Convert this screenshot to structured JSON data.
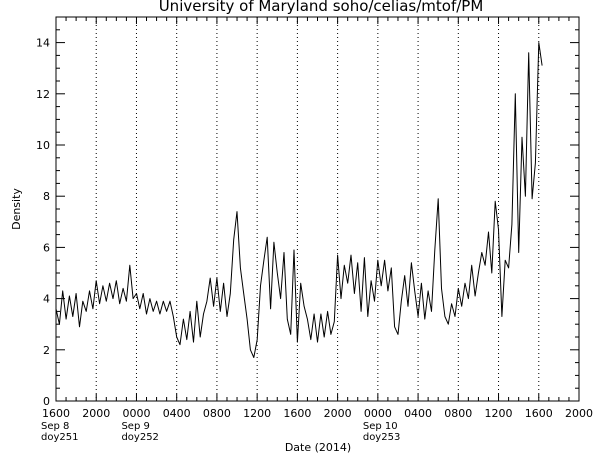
{
  "chart_data": {
    "type": "line",
    "title": "University  of  Maryland   soho/celias/mtof/PM",
    "xlabel": "Date (2014)",
    "ylabel": "Density",
    "ylim": [
      0,
      15
    ],
    "yticks": [
      0,
      2,
      4,
      6,
      8,
      10,
      12,
      14
    ],
    "x_start": "2014-09-08 16:00",
    "x_end": "2014-09-10 20:00",
    "xticks": [
      "1600",
      "2000",
      "0000",
      "0400",
      "0800",
      "1200",
      "1600",
      "2000",
      "0000",
      "0400",
      "0800",
      "1200",
      "1600",
      "2000"
    ],
    "date_markers": [
      {
        "tick": "1600",
        "lines": [
          "Sep 8",
          "doy251"
        ]
      },
      {
        "tick": "0000",
        "lines": [
          "Sep 9",
          "doy252"
        ]
      },
      {
        "tick": "0000",
        "lines": [
          "Sep 10",
          "doy253"
        ]
      }
    ],
    "grid": "dotted vertical lines every 4 hours",
    "series": [
      {
        "color": "#000000",
        "points": [
          [
            "2014-09-08 16:00",
            3.6
          ],
          [
            "2014-09-08 16:20",
            3.0
          ],
          [
            "2014-09-08 16:40",
            4.3
          ],
          [
            "2014-09-08 17:00",
            3.2
          ],
          [
            "2014-09-08 17:20",
            4.1
          ],
          [
            "2014-09-08 17:40",
            3.3
          ],
          [
            "2014-09-08 18:00",
            4.2
          ],
          [
            "2014-09-08 18:20",
            2.9
          ],
          [
            "2014-09-08 18:40",
            3.9
          ],
          [
            "2014-09-08 19:00",
            3.5
          ],
          [
            "2014-09-08 19:20",
            4.3
          ],
          [
            "2014-09-08 19:40",
            3.6
          ],
          [
            "2014-09-08 20:00",
            4.7
          ],
          [
            "2014-09-08 20:20",
            3.8
          ],
          [
            "2014-09-08 20:40",
            4.5
          ],
          [
            "2014-09-08 21:00",
            3.9
          ],
          [
            "2014-09-08 21:20",
            4.6
          ],
          [
            "2014-09-08 21:40",
            4.0
          ],
          [
            "2014-09-08 22:00",
            4.7
          ],
          [
            "2014-09-08 22:20",
            3.8
          ],
          [
            "2014-09-08 22:40",
            4.4
          ],
          [
            "2014-09-08 23:00",
            3.9
          ],
          [
            "2014-09-08 23:20",
            5.3
          ],
          [
            "2014-09-08 23:40",
            4.0
          ],
          [
            "2014-09-09 00:00",
            4.2
          ],
          [
            "2014-09-09 00:20",
            3.6
          ],
          [
            "2014-09-09 00:40",
            4.2
          ],
          [
            "2014-09-09 01:00",
            3.4
          ],
          [
            "2014-09-09 01:20",
            4.0
          ],
          [
            "2014-09-09 01:40",
            3.5
          ],
          [
            "2014-09-09 02:00",
            3.9
          ],
          [
            "2014-09-09 02:20",
            3.4
          ],
          [
            "2014-09-09 02:40",
            3.9
          ],
          [
            "2014-09-09 03:00",
            3.5
          ],
          [
            "2014-09-09 03:20",
            3.9
          ],
          [
            "2014-09-09 03:40",
            3.3
          ],
          [
            "2014-09-09 04:00",
            2.5
          ],
          [
            "2014-09-09 04:20",
            2.2
          ],
          [
            "2014-09-09 04:40",
            3.2
          ],
          [
            "2014-09-09 05:00",
            2.4
          ],
          [
            "2014-09-09 05:20",
            3.5
          ],
          [
            "2014-09-09 05:40",
            2.3
          ],
          [
            "2014-09-09 06:00",
            3.9
          ],
          [
            "2014-09-09 06:20",
            2.5
          ],
          [
            "2014-09-09 06:40",
            3.4
          ],
          [
            "2014-09-09 07:00",
            3.9
          ],
          [
            "2014-09-09 07:20",
            4.8
          ],
          [
            "2014-09-09 07:40",
            3.7
          ],
          [
            "2014-09-09 08:00",
            4.8
          ],
          [
            "2014-09-09 08:20",
            3.5
          ],
          [
            "2014-09-09 08:40",
            4.6
          ],
          [
            "2014-09-09 09:00",
            3.3
          ],
          [
            "2014-09-09 09:20",
            4.2
          ],
          [
            "2014-09-09 09:40",
            6.3
          ],
          [
            "2014-09-09 10:00",
            7.4
          ],
          [
            "2014-09-09 10:20",
            5.2
          ],
          [
            "2014-09-09 10:40",
            4.2
          ],
          [
            "2014-09-09 11:00",
            3.2
          ],
          [
            "2014-09-09 11:20",
            2.0
          ],
          [
            "2014-09-09 11:40",
            1.7
          ],
          [
            "2014-09-09 12:00",
            2.4
          ],
          [
            "2014-09-09 12:20",
            4.5
          ],
          [
            "2014-09-09 12:40",
            5.5
          ],
          [
            "2014-09-09 13:00",
            6.4
          ],
          [
            "2014-09-09 13:20",
            3.6
          ],
          [
            "2014-09-09 13:40",
            6.2
          ],
          [
            "2014-09-09 14:00",
            5.0
          ],
          [
            "2014-09-09 14:20",
            4.0
          ],
          [
            "2014-09-09 14:40",
            5.8
          ],
          [
            "2014-09-09 15:00",
            3.2
          ],
          [
            "2014-09-09 15:20",
            2.6
          ],
          [
            "2014-09-09 15:40",
            5.9
          ],
          [
            "2014-09-09 16:00",
            2.3
          ],
          [
            "2014-09-09 16:20",
            4.6
          ],
          [
            "2014-09-09 16:40",
            3.7
          ],
          [
            "2014-09-09 17:00",
            3.2
          ],
          [
            "2014-09-09 17:20",
            2.4
          ],
          [
            "2014-09-09 17:40",
            3.4
          ],
          [
            "2014-09-09 18:00",
            2.3
          ],
          [
            "2014-09-09 18:20",
            3.4
          ],
          [
            "2014-09-09 18:40",
            2.5
          ],
          [
            "2014-09-09 19:00",
            3.5
          ],
          [
            "2014-09-09 19:20",
            2.6
          ],
          [
            "2014-09-09 19:40",
            3.1
          ],
          [
            "2014-09-09 20:00",
            5.7
          ],
          [
            "2014-09-09 20:20",
            4.0
          ],
          [
            "2014-09-09 20:40",
            5.3
          ],
          [
            "2014-09-09 21:00",
            4.6
          ],
          [
            "2014-09-09 21:20",
            5.7
          ],
          [
            "2014-09-09 21:40",
            4.2
          ],
          [
            "2014-09-09 22:00",
            5.4
          ],
          [
            "2014-09-09 22:20",
            3.5
          ],
          [
            "2014-09-09 22:40",
            5.6
          ],
          [
            "2014-09-09 23:00",
            3.3
          ],
          [
            "2014-09-09 23:20",
            4.7
          ],
          [
            "2014-09-09 23:40",
            3.9
          ],
          [
            "2014-09-10 00:00",
            5.5
          ],
          [
            "2014-09-10 00:20",
            4.5
          ],
          [
            "2014-09-10 00:40",
            5.5
          ],
          [
            "2014-09-10 01:00",
            4.3
          ],
          [
            "2014-09-10 01:20",
            5.2
          ],
          [
            "2014-09-10 01:40",
            2.9
          ],
          [
            "2014-09-10 02:00",
            2.6
          ],
          [
            "2014-09-10 02:20",
            3.9
          ],
          [
            "2014-09-10 02:40",
            4.9
          ],
          [
            "2014-09-10 03:00",
            3.7
          ],
          [
            "2014-09-10 03:20",
            5.4
          ],
          [
            "2014-09-10 03:40",
            4.3
          ],
          [
            "2014-09-10 04:00",
            3.3
          ],
          [
            "2014-09-10 04:20",
            4.6
          ],
          [
            "2014-09-10 04:40",
            3.2
          ],
          [
            "2014-09-10 05:00",
            4.3
          ],
          [
            "2014-09-10 05:20",
            3.5
          ],
          [
            "2014-09-10 05:40",
            5.9
          ],
          [
            "2014-09-10 06:00",
            7.9
          ],
          [
            "2014-09-10 06:20",
            4.4
          ],
          [
            "2014-09-10 06:40",
            3.3
          ],
          [
            "2014-09-10 07:00",
            3.0
          ],
          [
            "2014-09-10 07:20",
            3.8
          ],
          [
            "2014-09-10 07:40",
            3.3
          ],
          [
            "2014-09-10 08:00",
            4.4
          ],
          [
            "2014-09-10 08:20",
            3.7
          ],
          [
            "2014-09-10 08:40",
            4.6
          ],
          [
            "2014-09-10 09:00",
            4.0
          ],
          [
            "2014-09-10 09:20",
            5.3
          ],
          [
            "2014-09-10 09:40",
            4.1
          ],
          [
            "2014-09-10 10:00",
            5.0
          ],
          [
            "2014-09-10 10:20",
            5.8
          ],
          [
            "2014-09-10 10:40",
            5.3
          ],
          [
            "2014-09-10 11:00",
            6.6
          ],
          [
            "2014-09-10 11:20",
            5.0
          ],
          [
            "2014-09-10 11:40",
            7.8
          ],
          [
            "2014-09-10 12:00",
            6.7
          ],
          [
            "2014-09-10 12:20",
            3.3
          ],
          [
            "2014-09-10 12:40",
            5.5
          ],
          [
            "2014-09-10 13:00",
            5.2
          ],
          [
            "2014-09-10 13:20",
            6.9
          ],
          [
            "2014-09-10 13:40",
            12.0
          ],
          [
            "2014-09-10 14:00",
            5.8
          ],
          [
            "2014-09-10 14:20",
            10.3
          ],
          [
            "2014-09-10 14:40",
            8.0
          ],
          [
            "2014-09-10 15:00",
            13.6
          ],
          [
            "2014-09-10 15:20",
            7.9
          ],
          [
            "2014-09-10 15:40",
            9.3
          ],
          [
            "2014-09-10 16:00",
            14.0
          ],
          [
            "2014-09-10 16:20",
            13.1
          ]
        ]
      }
    ]
  }
}
